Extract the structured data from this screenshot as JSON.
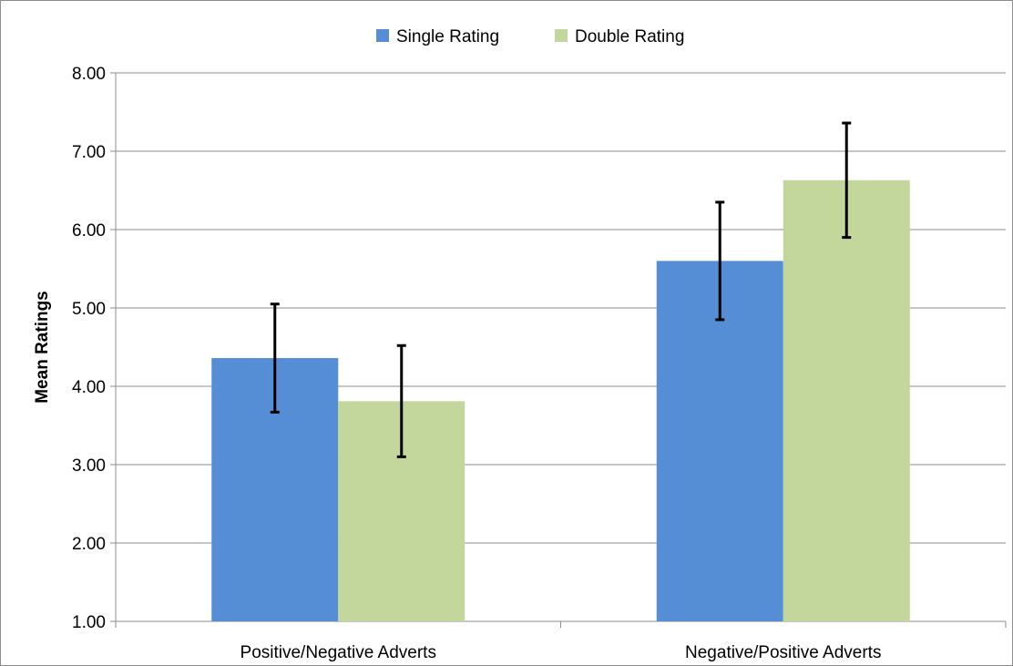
{
  "chart_data": {
    "type": "bar",
    "title": "",
    "xlabel": "",
    "ylabel": "Mean Ratings",
    "ylim": [
      1,
      8
    ],
    "yticks": [
      "1.00",
      "2.00",
      "3.00",
      "4.00",
      "5.00",
      "6.00",
      "7.00",
      "8.00"
    ],
    "categories": [
      "Positive/Negative Adverts",
      "Negative/Positive Adverts"
    ],
    "grid": "horizontal",
    "legend_position": "top-center",
    "series": [
      {
        "name": "Single Rating",
        "color": "#558ed5",
        "values": [
          4.36,
          5.6
        ],
        "error_low": [
          3.67,
          4.85
        ],
        "error_high": [
          5.05,
          6.35
        ]
      },
      {
        "name": "Double Rating",
        "color": "#c3d69b",
        "values": [
          3.81,
          6.63
        ],
        "error_low": [
          3.1,
          5.9
        ],
        "error_high": [
          4.52,
          7.36
        ]
      }
    ]
  }
}
